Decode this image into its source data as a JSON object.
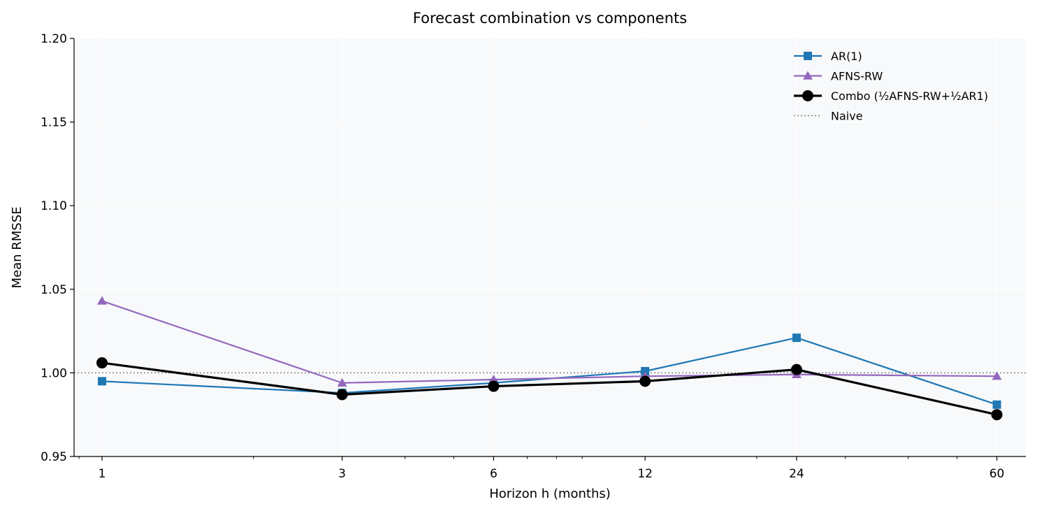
{
  "chart_data": {
    "type": "line",
    "title": "Forecast combination vs components",
    "xlabel": "Horizon h (months)",
    "ylabel": "Mean RMSSE",
    "x_scale": "log",
    "x": [
      1,
      3,
      6,
      12,
      24,
      60
    ],
    "x_tick_labels": [
      "1",
      "3",
      "6",
      "12",
      "24",
      "60"
    ],
    "y_ticks": [
      "0.95",
      "1.00",
      "1.05",
      "1.10",
      "1.15",
      "1.20"
    ],
    "ylim": [
      0.95,
      1.2
    ],
    "grid": true,
    "legend_position": "top-right",
    "series": [
      {
        "name": "AR(1)",
        "color": "#1f77b4",
        "marker": "square",
        "values": [
          0.995,
          0.988,
          0.994,
          1.001,
          1.021,
          0.981
        ]
      },
      {
        "name": "AFNS-RW",
        "color": "#9467bd",
        "marker": "triangle",
        "values": [
          1.043,
          0.994,
          0.996,
          0.998,
          0.999,
          0.998
        ]
      },
      {
        "name": "Combo (½AFNS-RW+½AR1)",
        "color": "#000000",
        "marker": "circle",
        "values": [
          1.006,
          0.987,
          0.992,
          0.995,
          1.002,
          0.975
        ]
      }
    ],
    "reference_line": {
      "name": "Naive",
      "value": 1.0,
      "color": "#808080"
    }
  }
}
